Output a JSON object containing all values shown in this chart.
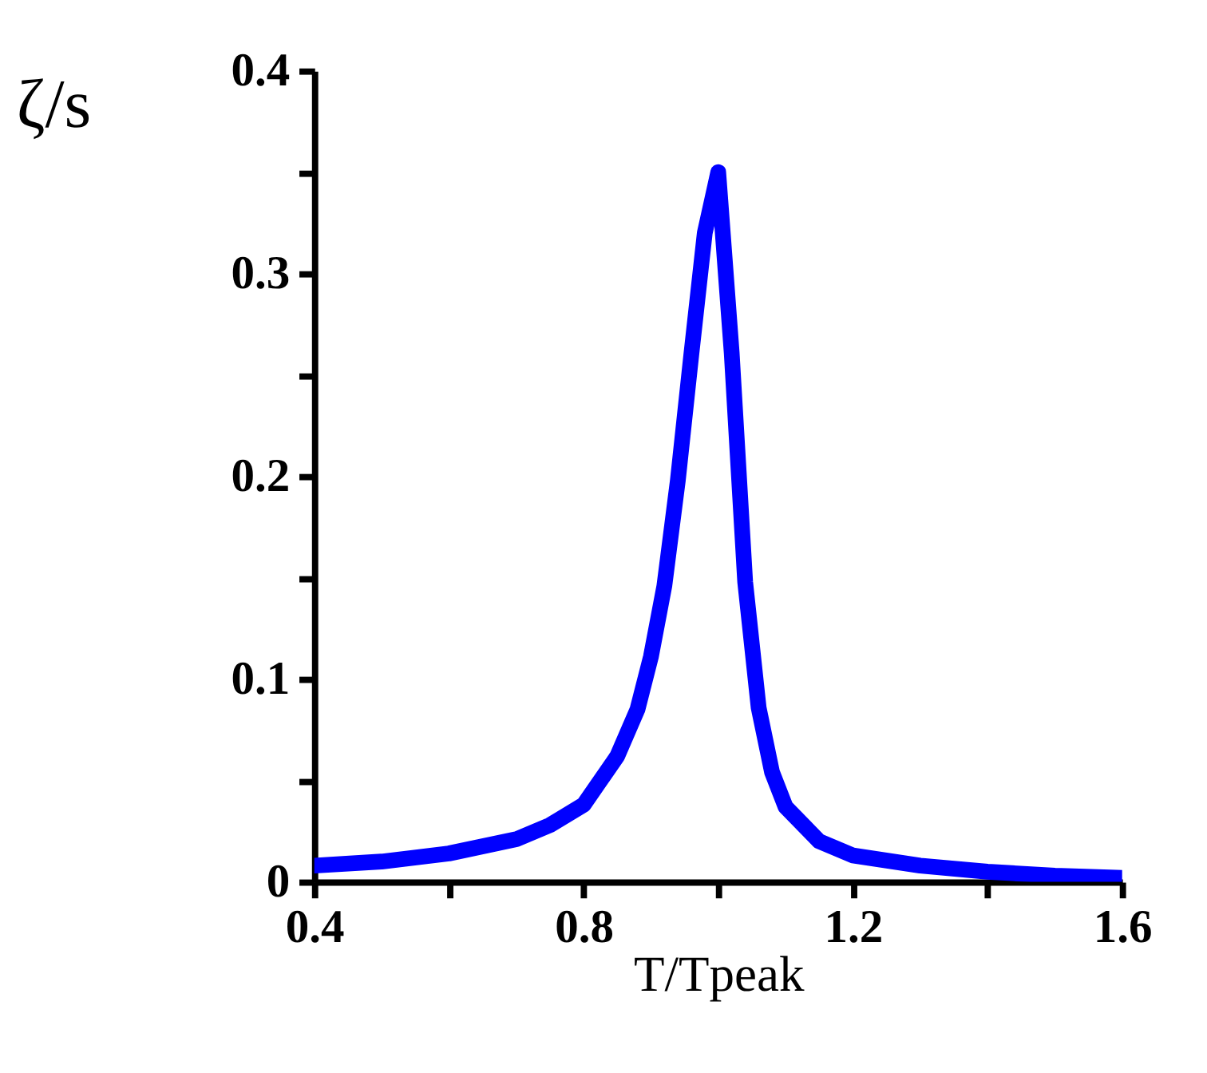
{
  "chart_data": {
    "type": "line",
    "xlabel": "T/Tpeak",
    "ylabel": "ζ/s",
    "series": [
      {
        "color": "#0000ff",
        "x": [
          0.4,
          0.5,
          0.6,
          0.7,
          0.75,
          0.8,
          0.85,
          0.88,
          0.9,
          0.92,
          0.94,
          0.96,
          0.98,
          1.0,
          1.02,
          1.04,
          1.06,
          1.08,
          1.1,
          1.15,
          1.2,
          1.3,
          1.4,
          1.5,
          1.6
        ],
        "values": [
          0.008,
          0.01,
          0.014,
          0.021,
          0.028,
          0.038,
          0.062,
          0.085,
          0.111,
          0.146,
          0.198,
          0.26,
          0.32,
          0.35,
          0.261,
          0.148,
          0.086,
          0.054,
          0.037,
          0.02,
          0.013,
          0.008,
          0.005,
          0.003,
          0.002
        ]
      }
    ],
    "xlim": [
      0.4,
      1.6
    ],
    "ylim": [
      0,
      0.4
    ],
    "xticks": [
      0.4,
      {
        "value": 0.6,
        "label": null
      },
      0.8,
      {
        "value": 1.0,
        "label": null
      },
      1.2,
      {
        "value": 1.4,
        "label": null
      },
      1.6
    ],
    "yticks": [
      0,
      {
        "value": 0.05,
        "label": null
      },
      0.1,
      {
        "value": 0.15,
        "label": null
      },
      0.2,
      {
        "value": 0.25,
        "label": null
      },
      0.3,
      {
        "value": 0.35,
        "label": null
      },
      0.4
    ],
    "grid": false,
    "marker": "none",
    "line_style": "solid"
  }
}
